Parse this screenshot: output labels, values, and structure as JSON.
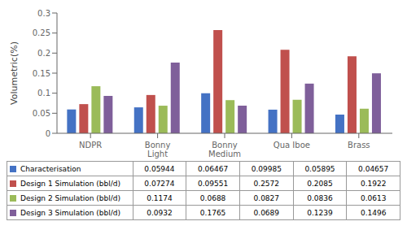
{
  "chart_data": {
    "type": "bar",
    "categories": [
      "NDPR",
      "Bonny\nLight",
      "Bonny\nMedium",
      "Qua Iboe",
      "Brass"
    ],
    "series": [
      {
        "name": "Characterisation",
        "color": "#4472C4",
        "values": [
          0.05944,
          0.06467,
          0.09985,
          0.05895,
          0.04657
        ]
      },
      {
        "name": "Design 1 Simulation (bbl/d)",
        "color": "#C0504D",
        "values": [
          0.07274,
          0.09551,
          0.2572,
          0.2085,
          0.1922
        ]
      },
      {
        "name": "Design 2 Simulation (bbl/d)",
        "color": "#9BBB59",
        "values": [
          0.1174,
          0.0688,
          0.0827,
          0.0836,
          0.0613
        ]
      },
      {
        "name": "Design 3 Simulation (bbl/d)",
        "color": "#7F5F9A",
        "values": [
          0.0932,
          0.1765,
          0.0689,
          0.1239,
          0.1496
        ]
      }
    ],
    "ylabel": "Volumetric(%)",
    "ylim": [
      0,
      0.3
    ],
    "yticks": [
      0,
      0.05,
      0.1,
      0.15,
      0.2,
      0.25,
      0.3
    ],
    "grid": false,
    "table_rows": [
      [
        "Characterisation",
        "0.05944",
        "0.06467",
        "0.09985",
        "0.05895",
        "0.04657"
      ],
      [
        "Design 1 Simulation (bbl/d)",
        "0.07274",
        "0.09551",
        "0.2572",
        "0.2085",
        "0.1922"
      ],
      [
        "Design 2 Simulation (bbl/d)",
        "0.1174",
        "0.0688",
        "0.0827",
        "0.0836",
        "0.0613"
      ],
      [
        "Design 3 Simulation (bbl/d)",
        "0.0932",
        "0.1765",
        "0.0689",
        "0.1239",
        "0.1496"
      ]
    ]
  }
}
